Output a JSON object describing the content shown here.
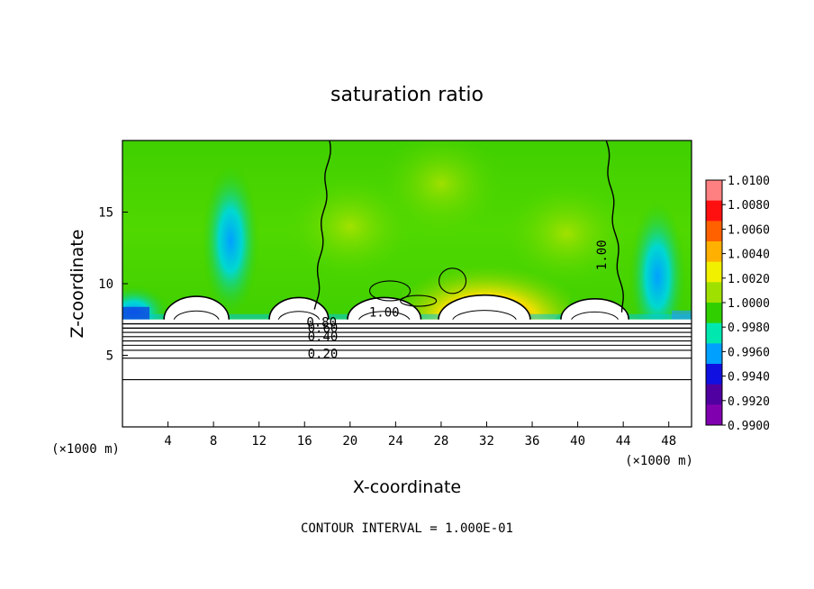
{
  "chart_data": {
    "type": "heatmap",
    "title": "saturation ratio",
    "xlabel": "X-coordinate",
    "ylabel": "Z-coordinate",
    "x_unit": "(×1000 m)",
    "y_unit": "(×1000 m)",
    "xlim": [
      0,
      50
    ],
    "ylim": [
      0,
      20
    ],
    "x_ticks": [
      "4",
      "8",
      "12",
      "16",
      "20",
      "24",
      "28",
      "32",
      "36",
      "40",
      "44",
      "48"
    ],
    "x_tick_values": [
      4,
      8,
      12,
      16,
      20,
      24,
      28,
      32,
      36,
      40,
      44,
      48
    ],
    "y_ticks": [
      "5",
      "10",
      "15"
    ],
    "y_tick_values": [
      5,
      10,
      15
    ],
    "colorbar": {
      "labels": [
        "1.0100",
        "1.0080",
        "1.0060",
        "1.0040",
        "1.0020",
        "1.0000",
        "0.9980",
        "0.9960",
        "0.9940",
        "0.9920",
        "0.9900"
      ],
      "colors": [
        "#ff8080",
        "#ff1010",
        "#ff6000",
        "#ffb000",
        "#f0f000",
        "#a0e000",
        "#30d000",
        "#00e8b0",
        "#00a0ff",
        "#1010e0",
        "#5000a0",
        "#8000b0"
      ]
    },
    "contour_interval_text": "CONTOUR INTERVAL = 1.000E-01",
    "contour_labels": [
      {
        "text": "1.00",
        "x": 42.5,
        "z": 12.0,
        "rotate": -90
      },
      {
        "text": "1.00",
        "x": 23.0,
        "z": 7.7
      },
      {
        "text": "0.80",
        "x": 17.5,
        "z": 7.0
      },
      {
        "text": "0.60",
        "x": 17.6,
        "z": 6.6
      },
      {
        "text": "0.40",
        "x": 17.6,
        "z": 6.0
      },
      {
        "text": "0.20",
        "x": 17.6,
        "z": 4.8
      }
    ],
    "contour_levels_z": [
      7.2,
      6.9,
      6.6,
      6.3,
      6.0,
      5.7,
      5.35,
      4.8,
      3.3
    ],
    "regions": {
      "field_min": 0.99,
      "field_max": 1.01,
      "lower_layer_top_z": 7.5,
      "warm_core": {
        "x": 32.0,
        "z": 10.0,
        "max_value": 1.006
      },
      "dry_pockets": [
        {
          "x": 9.5,
          "z": 13.0,
          "min_value": 0.9962
        },
        {
          "x": 47.0,
          "z": 10.5,
          "min_value": 0.9945
        },
        {
          "x": 1.0,
          "z": 8.0,
          "min_value": 0.9935
        }
      ]
    }
  }
}
